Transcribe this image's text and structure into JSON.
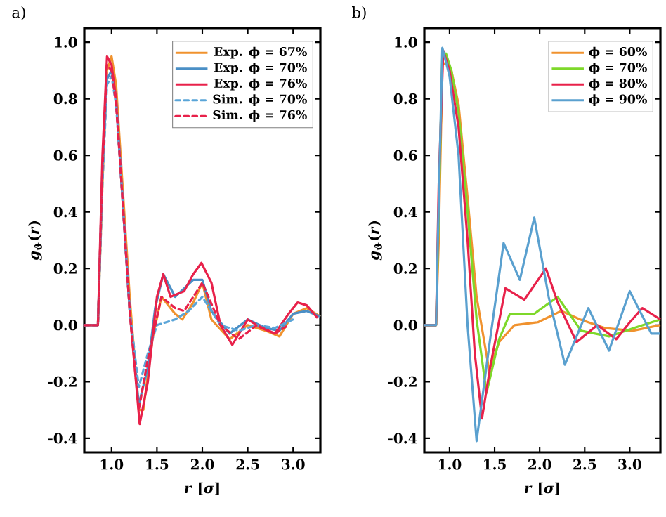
{
  "chart_data": [
    {
      "type": "line",
      "title": "a)",
      "xlabel": "*r* [*σ*]",
      "ylabel": "*g*$_{ϑ}$(*r*)",
      "xlim": [
        0.7,
        3.3
      ],
      "ylim": [
        -0.45,
        1.05
      ],
      "xticks": [
        {
          "value": 1.0,
          "label": "1.0"
        },
        {
          "value": 1.5,
          "label": "1.5"
        },
        {
          "value": 2.0,
          "label": "2.0"
        },
        {
          "value": 2.5,
          "label": "2.5"
        },
        {
          "value": 3.0,
          "label": "3.0"
        }
      ],
      "yticks": [
        {
          "value": -0.4,
          "label": "-0.4"
        },
        {
          "value": -0.2,
          "label": "-0.2"
        },
        {
          "value": 0.0,
          "label": "0.0"
        },
        {
          "value": 0.2,
          "label": "0.2"
        },
        {
          "value": 0.4,
          "label": "0.4"
        },
        {
          "value": 0.6,
          "label": "0.6"
        },
        {
          "value": 0.8,
          "label": "0.8"
        },
        {
          "value": 1.0,
          "label": "1.0"
        }
      ],
      "legend": "top right",
      "line_style": "solid",
      "series": [
        {
          "name": "Exp. ϕ = 67%",
          "color": "#f0922e",
          "x": [
            0.7,
            0.85,
            0.9,
            0.95,
            1.0,
            1.05,
            1.1,
            1.2,
            1.3,
            1.35,
            1.45,
            1.55,
            1.7,
            1.78,
            1.9,
            2.0,
            2.1,
            2.3,
            2.5,
            2.7,
            2.85,
            3.0,
            3.15,
            3.3
          ],
          "values": [
            0.0,
            0.0,
            0.5,
            0.9,
            0.95,
            0.85,
            0.6,
            0.1,
            -0.3,
            -0.3,
            -0.05,
            0.1,
            0.04,
            0.02,
            0.08,
            0.15,
            0.02,
            -0.05,
            0.0,
            -0.02,
            -0.04,
            0.04,
            0.06,
            0.03
          ]
        },
        {
          "name": "Exp. ϕ = 70%",
          "color": "#4a8fc6",
          "x": [
            0.7,
            0.85,
            0.9,
            0.95,
            1.0,
            1.05,
            1.1,
            1.2,
            1.3,
            1.4,
            1.48,
            1.57,
            1.7,
            1.9,
            2.0,
            2.1,
            2.3,
            2.5,
            2.7,
            2.85,
            3.0,
            3.15,
            3.3
          ],
          "values": [
            0.0,
            0.0,
            0.55,
            0.87,
            0.9,
            0.8,
            0.55,
            0.05,
            -0.28,
            -0.15,
            0.06,
            0.18,
            0.1,
            0.16,
            0.16,
            0.05,
            -0.03,
            0.02,
            -0.01,
            -0.02,
            0.04,
            0.05,
            0.03
          ]
        },
        {
          "name": "Exp. ϕ = 76%",
          "color": "#e8214a",
          "x": [
            0.7,
            0.85,
            0.9,
            0.95,
            1.0,
            1.05,
            1.1,
            1.2,
            1.31,
            1.4,
            1.5,
            1.57,
            1.65,
            1.8,
            1.9,
            1.99,
            2.1,
            2.2,
            2.33,
            2.5,
            2.65,
            2.8,
            2.95,
            3.05,
            3.15,
            3.27
          ],
          "values": [
            0.0,
            0.0,
            0.6,
            0.95,
            0.92,
            0.8,
            0.55,
            0.05,
            -0.35,
            -0.2,
            0.1,
            0.18,
            0.1,
            0.12,
            0.18,
            0.22,
            0.15,
            0.0,
            -0.07,
            0.02,
            -0.01,
            -0.03,
            0.04,
            0.08,
            0.07,
            0.025
          ]
        },
        {
          "name": "Sim. ϕ = 70%",
          "color": "#5aa5d8",
          "line_style": "dashed",
          "x": [
            0.7,
            0.85,
            0.9,
            0.95,
            1.0,
            1.05,
            1.1,
            1.2,
            1.3,
            1.4,
            1.5,
            1.7,
            1.85,
            2.0,
            2.2,
            2.4,
            2.6,
            2.8,
            3.0
          ],
          "values": [
            0.0,
            0.0,
            0.5,
            0.85,
            0.88,
            0.78,
            0.55,
            0.05,
            -0.22,
            -0.1,
            0.0,
            0.02,
            0.05,
            0.1,
            0.0,
            -0.02,
            0.0,
            -0.01,
            0.02
          ]
        },
        {
          "name": "Sim. ϕ = 76%",
          "color": "#e8214a",
          "line_style": "dashed",
          "x": [
            0.7,
            0.85,
            0.9,
            0.95,
            1.0,
            1.05,
            1.1,
            1.2,
            1.3,
            1.4,
            1.55,
            1.7,
            1.8,
            2.0,
            2.2,
            2.4,
            2.6,
            2.8,
            2.95
          ],
          "values": [
            0.0,
            0.0,
            0.55,
            0.92,
            0.9,
            0.78,
            0.55,
            0.05,
            -0.3,
            -0.12,
            0.1,
            0.06,
            0.05,
            0.15,
            0.0,
            -0.05,
            0.0,
            -0.03,
            0.0
          ]
        }
      ]
    },
    {
      "type": "line",
      "title": "b)",
      "xlabel": "*r* [*σ*]",
      "ylabel": "*g*$_{ϑ}$(*r*)",
      "xlim": [
        0.72,
        3.34
      ],
      "ylim": [
        -0.45,
        1.05
      ],
      "xticks": [
        {
          "value": 1.0,
          "label": "1.0"
        },
        {
          "value": 1.5,
          "label": "1.5"
        },
        {
          "value": 2.0,
          "label": "2.0"
        },
        {
          "value": 2.5,
          "label": "2.5"
        },
        {
          "value": 3.0,
          "label": "3.0"
        }
      ],
      "yticks": [
        {
          "value": -0.4,
          "label": "-0.4"
        },
        {
          "value": -0.2,
          "label": "-0.2"
        },
        {
          "value": 0.0,
          "label": "0.0"
        },
        {
          "value": 0.2,
          "label": "0.2"
        },
        {
          "value": 0.4,
          "label": "0.4"
        },
        {
          "value": 0.6,
          "label": "0.6"
        },
        {
          "value": 0.8,
          "label": "0.8"
        },
        {
          "value": 1.0,
          "label": "1.0"
        }
      ],
      "legend": "top right",
      "line_style": "solid",
      "series": [
        {
          "name": "ϕ = 60%",
          "color": "#f0922e",
          "x": [
            0.72,
            0.85,
            0.88,
            0.92,
            0.97,
            1.02,
            1.1,
            1.2,
            1.3,
            1.44,
            1.55,
            1.72,
            1.98,
            2.24,
            2.45,
            2.72,
            3.03,
            3.34
          ],
          "values": [
            0.0,
            0.0,
            0.3,
            0.92,
            0.93,
            0.9,
            0.78,
            0.45,
            0.1,
            -0.16,
            -0.06,
            0.0,
            0.01,
            0.05,
            0.02,
            -0.01,
            -0.02,
            0.0
          ]
        },
        {
          "name": "ϕ = 70%",
          "color": "#7ed82a",
          "x": [
            0.72,
            0.85,
            0.88,
            0.92,
            0.96,
            1.02,
            1.1,
            1.2,
            1.3,
            1.41,
            1.55,
            1.67,
            1.94,
            2.2,
            2.46,
            2.77,
            3.05,
            3.34
          ],
          "values": [
            0.0,
            0.0,
            0.4,
            0.95,
            0.96,
            0.9,
            0.75,
            0.4,
            0.02,
            -0.24,
            -0.05,
            0.04,
            0.04,
            0.1,
            -0.02,
            -0.04,
            -0.01,
            0.02
          ]
        },
        {
          "name": "ϕ = 80%",
          "color": "#e8214a",
          "x": [
            0.72,
            0.85,
            0.88,
            0.93,
            1.0,
            1.1,
            1.2,
            1.28,
            1.36,
            1.45,
            1.62,
            1.83,
            2.07,
            2.2,
            2.41,
            2.64,
            2.85,
            3.0,
            3.14,
            3.34
          ],
          "values": [
            0.0,
            0.0,
            0.5,
            0.97,
            0.9,
            0.7,
            0.3,
            -0.1,
            -0.33,
            -0.15,
            0.13,
            0.09,
            0.2,
            0.08,
            -0.06,
            0.0,
            -0.05,
            0.01,
            0.06,
            0.02
          ]
        },
        {
          "name": "ϕ = 90%",
          "color": "#5aa0cf",
          "x": [
            0.72,
            0.85,
            0.87,
            0.92,
            1.0,
            1.1,
            1.2,
            1.3,
            1.45,
            1.6,
            1.78,
            1.94,
            2.1,
            2.28,
            2.54,
            2.77,
            3.0,
            3.24,
            3.34
          ],
          "values": [
            0.0,
            0.0,
            0.3,
            0.98,
            0.88,
            0.6,
            0.0,
            -0.41,
            -0.05,
            0.29,
            0.16,
            0.38,
            0.1,
            -0.14,
            0.06,
            -0.09,
            0.12,
            -0.03,
            -0.03
          ]
        }
      ]
    }
  ]
}
